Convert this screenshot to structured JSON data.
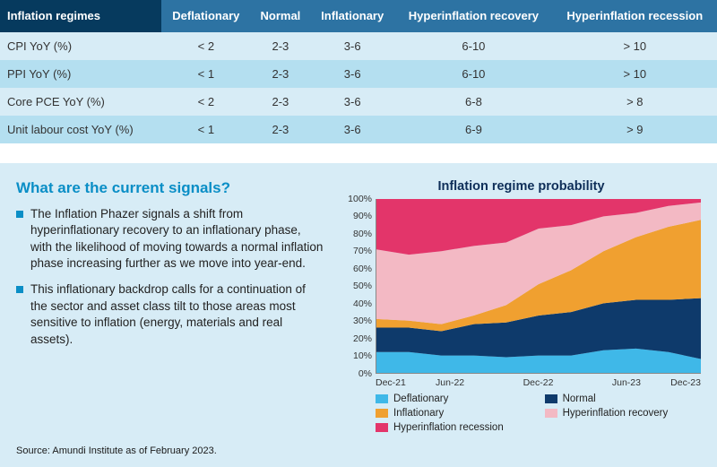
{
  "colors": {
    "header_dark": "#063a5e",
    "header_mid": "#2d73a3",
    "row_light": "#d7ecf6",
    "row_alt": "#b4dff0",
    "panel_bg": "#d7ecf6",
    "accent_teal": "#0a8ec6",
    "title_navy": "#0e2e58"
  },
  "table": {
    "headers": [
      "Inflation regimes",
      "Deflationary",
      "Normal",
      "Inflationary",
      "Hyperinflation recovery",
      "Hyperinflation recession"
    ],
    "rows": [
      [
        "CPI YoY (%)",
        "< 2",
        "2-3",
        "3-6",
        "6-10",
        "> 10"
      ],
      [
        "PPI YoY (%)",
        "< 1",
        "2-3",
        "3-6",
        "6-10",
        "> 10"
      ],
      [
        "Core PCE YoY (%)",
        "< 2",
        "2-3",
        "3-6",
        "6-8",
        "> 8"
      ],
      [
        "Unit labour cost YoY (%)",
        "< 1",
        "2-3",
        "3-6",
        "6-9",
        "> 9"
      ]
    ]
  },
  "signals": {
    "heading": "What are the current signals?",
    "bullets": [
      "The Inflation Phazer signals a shift from hyperinflationary recovery to an inflationary phase, with the likelihood of moving towards a normal inflation phase increasing further as we move into year-end.",
      "This inflationary backdrop calls for a continuation of the sector and asset class tilt to those areas most sensitive to inflation (energy, materials and real assets)."
    ]
  },
  "chart": {
    "title": "Inflation regime probability",
    "type": "stacked-area",
    "y_ticks": [
      0,
      10,
      20,
      30,
      40,
      50,
      60,
      70,
      80,
      90,
      100
    ],
    "y_suffix": "%",
    "x_labels": [
      "Dec-21",
      "Jun-22",
      "Dec-22",
      "Jun-23",
      "Dec-23"
    ],
    "x_points": [
      0,
      2.5,
      5,
      7.5,
      10,
      12.5,
      15,
      17.5,
      20,
      22.5,
      25
    ],
    "series": [
      {
        "name": "Deflationary",
        "color": "#3fb8e8",
        "values": [
          12,
          12,
          10,
          10,
          9,
          10,
          10,
          13,
          14,
          12,
          8
        ]
      },
      {
        "name": "Normal",
        "color": "#0e3a6b",
        "values": [
          14,
          14,
          14,
          18,
          20,
          23,
          25,
          27,
          28,
          30,
          35
        ]
      },
      {
        "name": "Inflationary",
        "color": "#f0a030",
        "values": [
          5,
          4,
          4,
          5,
          10,
          18,
          24,
          30,
          36,
          42,
          45
        ]
      },
      {
        "name": "Hyperinflation recovery",
        "color": "#f3b9c4",
        "values": [
          40,
          38,
          42,
          40,
          36,
          32,
          26,
          20,
          14,
          12,
          10
        ]
      },
      {
        "name": "Hyperinflation recession",
        "color": "#e3356a",
        "values": [
          29,
          32,
          30,
          27,
          25,
          17,
          15,
          10,
          8,
          4,
          2
        ]
      }
    ],
    "legend": [
      {
        "label": "Deflationary",
        "color": "#3fb8e8"
      },
      {
        "label": "Normal",
        "color": "#0e3a6b"
      },
      {
        "label": "Inflationary",
        "color": "#f0a030"
      },
      {
        "label": "Hyperinflation recovery",
        "color": "#f3b9c4"
      },
      {
        "label": "Hyperinflation recession",
        "color": "#e3356a"
      }
    ]
  },
  "source": "Source: Amundi Institute as of February 2023."
}
